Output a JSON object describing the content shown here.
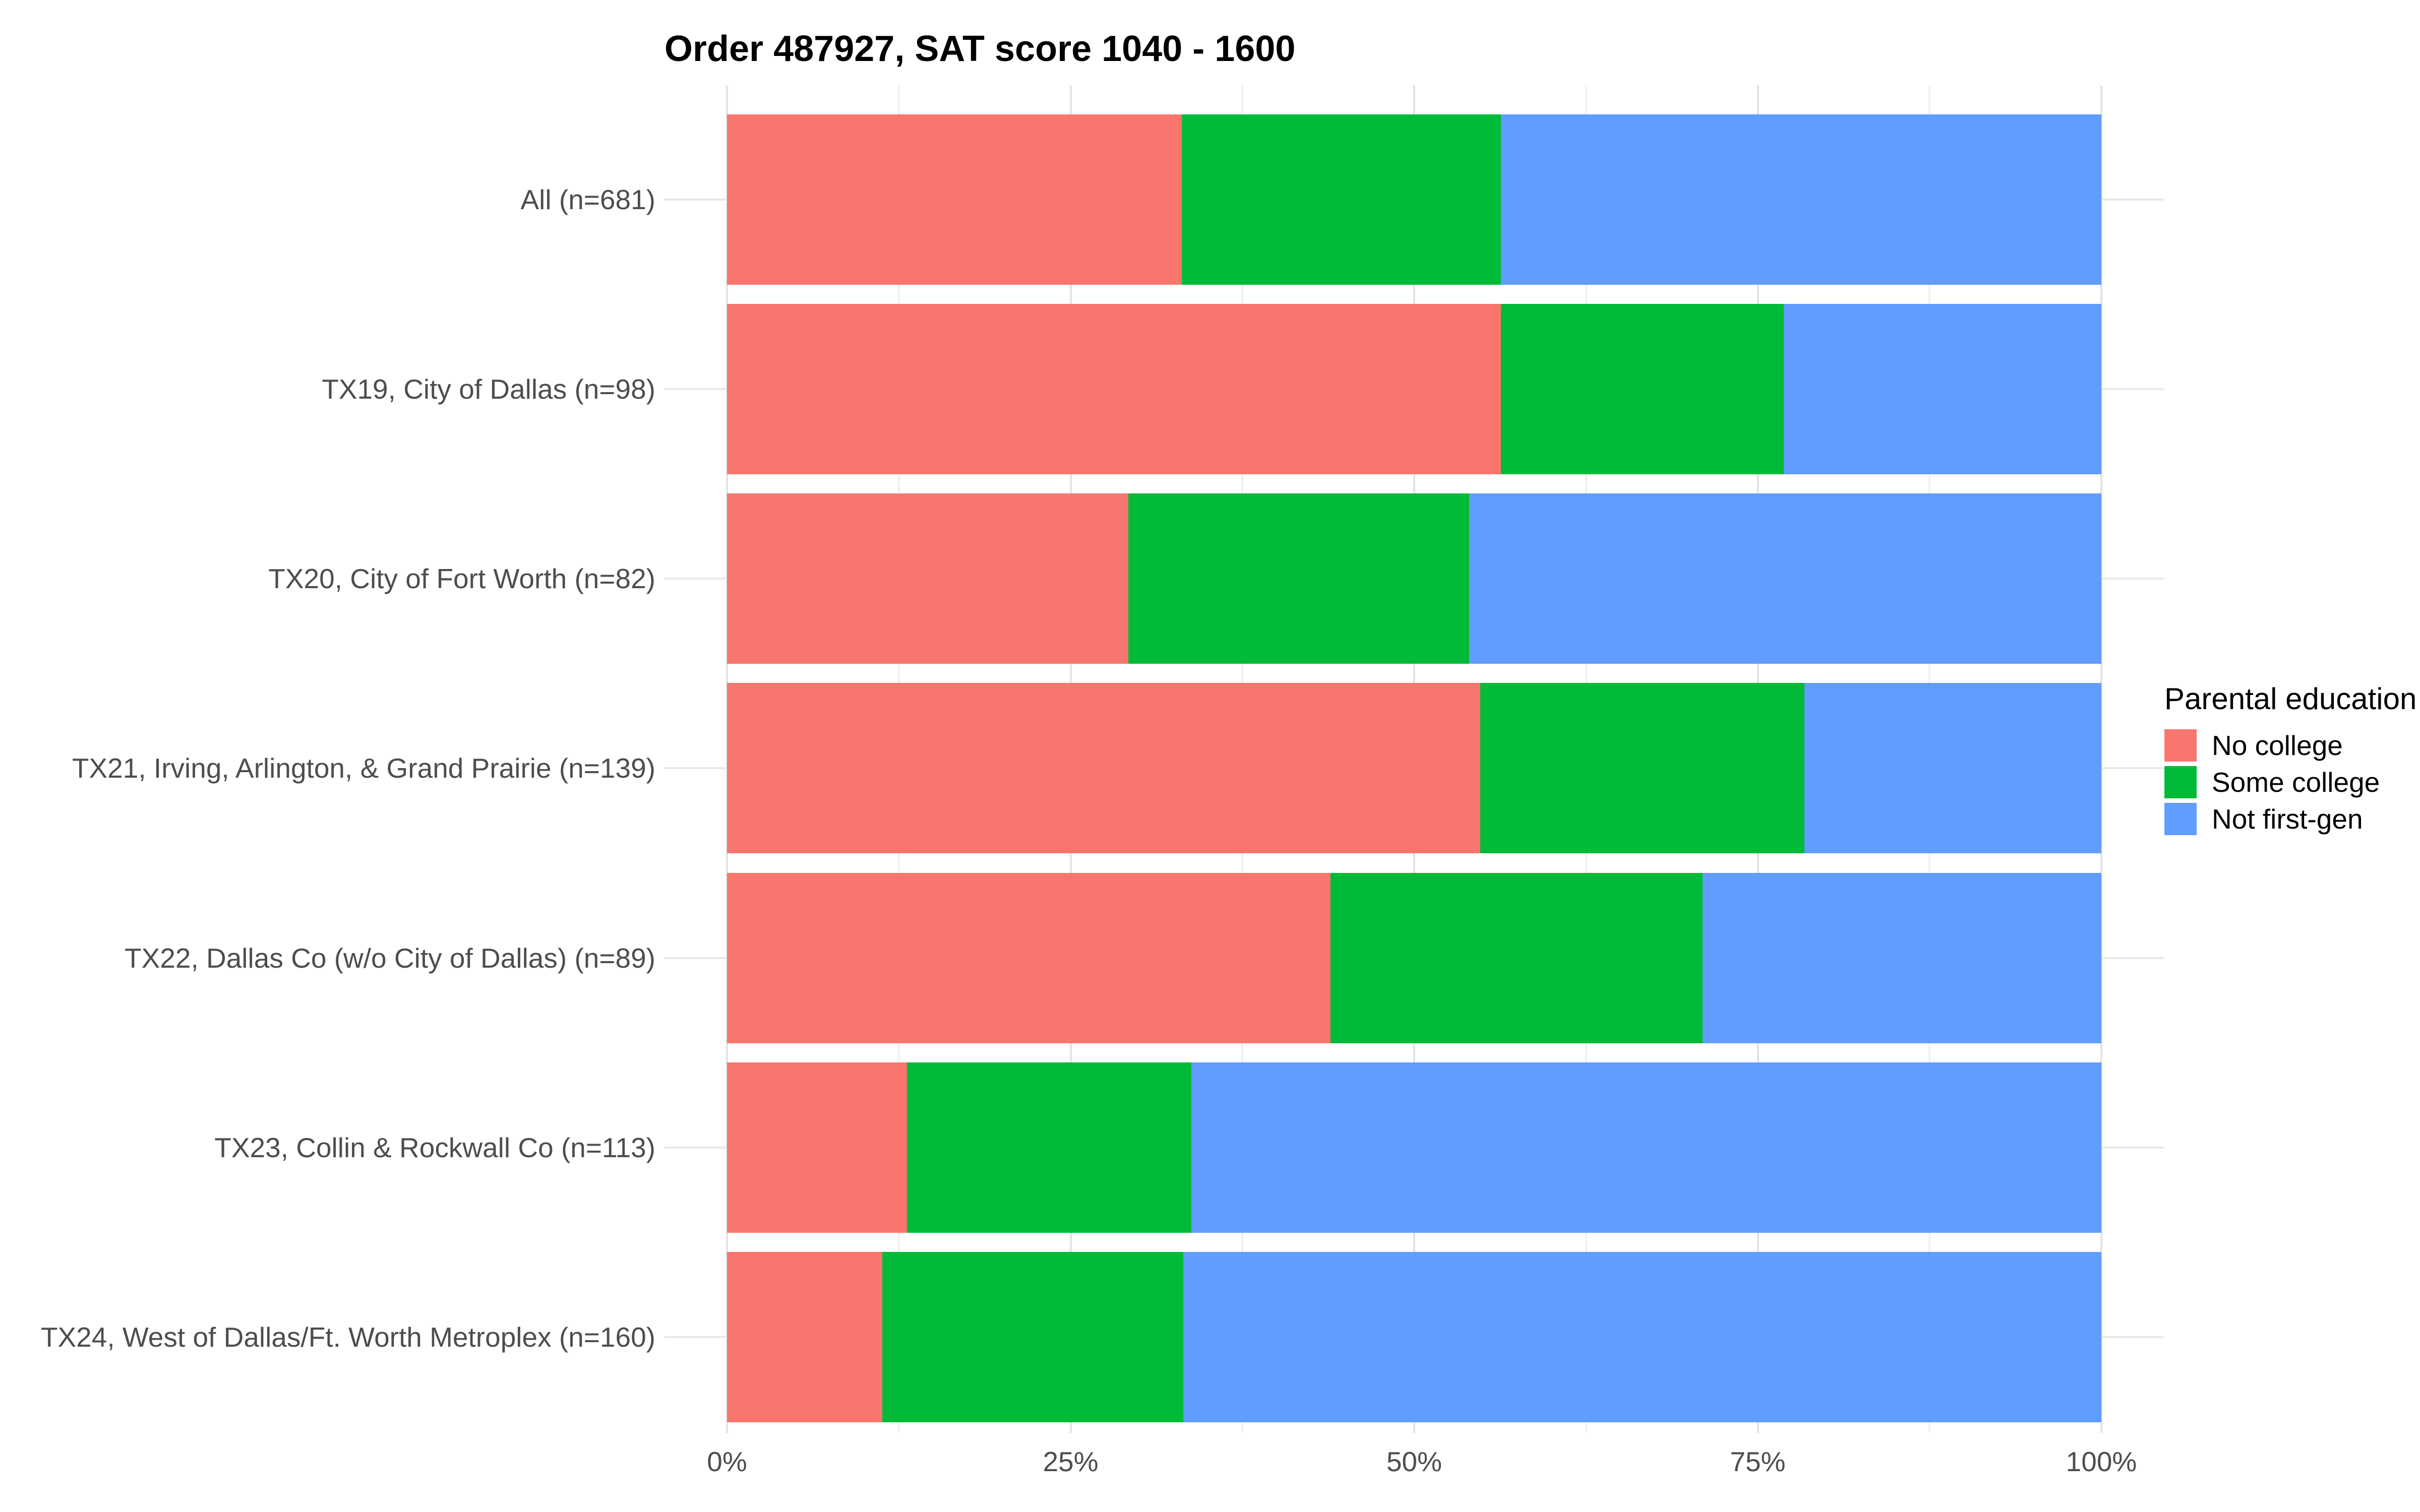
{
  "title": "Order 487927, SAT score 1040 - 1600",
  "legend": {
    "title": "Parental education",
    "items": [
      {
        "label": "No college",
        "color": "#F8766D"
      },
      {
        "label": "Some college",
        "color": "#00BA38"
      },
      {
        "label": "Not first-gen",
        "color": "#619CFF"
      }
    ]
  },
  "x_axis": {
    "tick_labels": [
      "0%",
      "25%",
      "50%",
      "75%",
      "100%"
    ]
  },
  "chart_data": {
    "type": "bar",
    "orientation": "horizontal",
    "stacked": true,
    "unit": "percent",
    "title": "Order 487927, SAT score 1040 - 1600",
    "categories": [
      "All (n=681)",
      "TX19, City of Dallas (n=98)",
      "TX20, City of Fort Worth (n=82)",
      "TX21, Irving, Arlington, & Grand Prairie (n=139)",
      "TX22, Dallas Co (w/o City of Dallas) (n=89)",
      "TX23, Collin & Rockwall Co (n=113)",
      "TX24, West of Dallas/Ft. Worth Metroplex (n=160)"
    ],
    "sample_sizes": [
      681,
      98,
      82,
      139,
      89,
      113,
      160
    ],
    "series": [
      {
        "name": "No college",
        "color": "#F8766D",
        "values": [
          33.1,
          56.3,
          29.2,
          54.8,
          43.9,
          13.1,
          11.3
        ]
      },
      {
        "name": "Some college",
        "color": "#00BA38",
        "values": [
          23.2,
          20.6,
          24.8,
          23.6,
          27.1,
          20.7,
          21.9
        ]
      },
      {
        "name": "Not first-gen",
        "color": "#619CFF",
        "values": [
          43.7,
          23.1,
          46.0,
          21.6,
          29.0,
          66.2,
          66.8
        ]
      }
    ],
    "xlim": [
      0,
      100
    ],
    "x_ticks": [
      0,
      25,
      50,
      75,
      100
    ],
    "x_minor_ticks": [
      12.5,
      37.5,
      62.5,
      87.5
    ],
    "grid": true,
    "legend_title": "Parental education",
    "legend_position": "right",
    "ylabel": "",
    "xlabel": ""
  }
}
